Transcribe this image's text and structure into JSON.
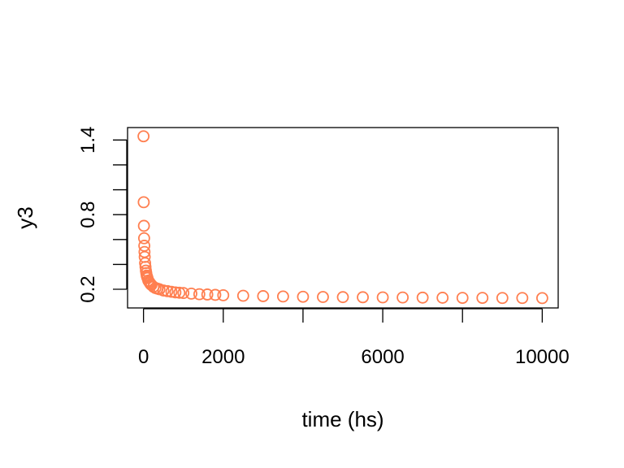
{
  "chart_data": {
    "type": "scatter",
    "title": "",
    "xlabel": "time (hs)",
    "ylabel": "y3",
    "xlim": [
      -400,
      10400
    ],
    "ylim": [
      0.05,
      1.5
    ],
    "x_ticks": [
      0,
      2000,
      4000,
      6000,
      8000,
      10000
    ],
    "x_tick_labels": [
      "0",
      "2000",
      "",
      "6000",
      "",
      "10000"
    ],
    "y_ticks": [
      0.2,
      0.4,
      0.6,
      0.8,
      1.0,
      1.2,
      1.4
    ],
    "y_tick_labels": [
      "0.2",
      "",
      "",
      "0.8",
      "",
      "",
      "1.4"
    ],
    "grid": false,
    "legend": "none",
    "marker": "open-circle",
    "color": "#FF7F50",
    "series": [
      {
        "x": [
          0,
          5,
          10,
          15,
          20,
          25,
          30,
          40,
          50,
          60,
          70,
          80,
          90,
          100,
          120,
          140,
          160,
          180,
          200,
          250,
          300,
          350,
          400,
          500,
          600,
          700,
          800,
          900,
          1000,
          1200,
          1400,
          1600,
          1800,
          2000,
          2500,
          3000,
          3500,
          4000,
          4500,
          5000,
          5500,
          6000,
          6500,
          7000,
          7500,
          8000,
          8500,
          9000,
          9500,
          10000
        ],
        "y": [
          1.43,
          0.9,
          0.71,
          0.61,
          0.55,
          0.5,
          0.46,
          0.41,
          0.38,
          0.35,
          0.33,
          0.31,
          0.3,
          0.29,
          0.27,
          0.26,
          0.25,
          0.24,
          0.235,
          0.22,
          0.21,
          0.205,
          0.2,
          0.19,
          0.185,
          0.18,
          0.175,
          0.172,
          0.17,
          0.165,
          0.16,
          0.158,
          0.155,
          0.152,
          0.148,
          0.145,
          0.142,
          0.14,
          0.138,
          0.137,
          0.136,
          0.135,
          0.134,
          0.133,
          0.132,
          0.131,
          0.131,
          0.13,
          0.13,
          0.129
        ]
      }
    ]
  }
}
